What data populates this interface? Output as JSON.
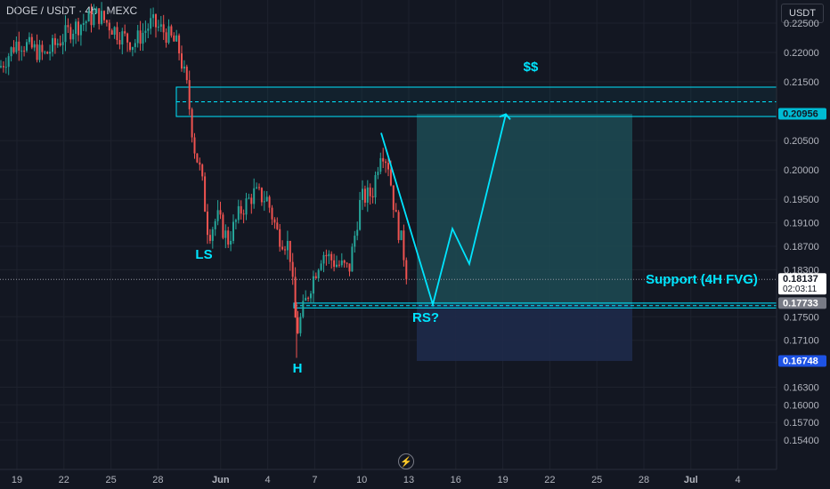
{
  "header": {
    "symbol_text": "DOGE / USDT · 4h · MEXC",
    "currency_button": "USDT"
  },
  "chart_data": {
    "type": "candlestick",
    "x_ticks": [
      "19",
      "22",
      "25",
      "28",
      "Jun",
      "4",
      "7",
      "10",
      "13",
      "16",
      "19",
      "22",
      "25",
      "28",
      "Jul",
      "4"
    ],
    "y_ticks": [
      "0.22500",
      "0.22000",
      "0.21500",
      "0.20500",
      "0.20000",
      "0.19500",
      "0.19100",
      "0.18700",
      "0.18300",
      "0.17500",
      "0.17100",
      "0.16300",
      "0.16000",
      "0.15700",
      "0.15400"
    ],
    "y_range": [
      0.152,
      0.227
    ],
    "price_badges": [
      {
        "label": "0.20956",
        "value": 0.20956,
        "bg": "#00bcd4",
        "fg": "#131722"
      },
      {
        "label": "0.18137",
        "sublabel": "02:03:11",
        "value": 0.18137,
        "bg": "#ffffff",
        "fg": "#131722"
      },
      {
        "label": "0.17733",
        "value": 0.17733,
        "bg": "#787b86",
        "fg": "#ffffff"
      },
      {
        "label": "0.16748",
        "value": 0.16748,
        "bg": "#1e53e5",
        "fg": "#ffffff"
      }
    ],
    "current_price": 0.18137,
    "annotations": {
      "target": "$$",
      "support": "Support (4H FVG)",
      "left_shoulder": "LS",
      "head": "H",
      "right_shoulder": "RS?"
    },
    "zones": {
      "target_zone": {
        "top": 0.2141,
        "bottom": 0.2091,
        "mid": 0.2116
      },
      "support_zone": {
        "top": 0.17733,
        "bottom": 0.1765,
        "mid": 0.1769
      },
      "long_position": {
        "entry": 0.1771,
        "target": 0.20956,
        "stop": 0.16748
      }
    },
    "projection_path": [
      {
        "x": "Jun 11",
        "y": 0.2063
      },
      {
        "x": "Jun 14",
        "y": 0.1771
      },
      {
        "x": "Jun 15",
        "y": 0.19
      },
      {
        "x": "Jun 16",
        "y": 0.184
      },
      {
        "x": "Jun 19",
        "y": 0.2095
      }
    ],
    "colors": {
      "up": "#26a69a",
      "down": "#ef5350",
      "zone_line": "#00e5ff",
      "profit_fill": "#1d4b53",
      "stop_fill": "#1e2a4a",
      "grid": "#1e222d",
      "text": "#b2b5be"
    }
  }
}
